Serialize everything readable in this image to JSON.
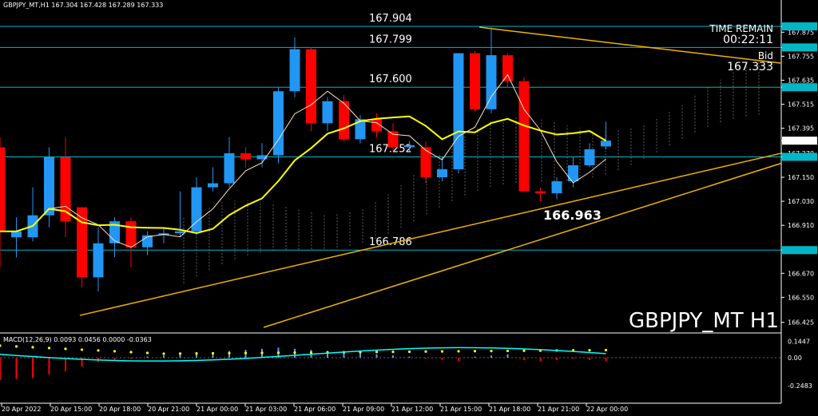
{
  "header": {
    "title": "GBPJPY_MT,H1",
    "ohlc": "167.304 167.428 167.289 167.333"
  },
  "info": {
    "time_remain_label": "TIME REMAIN",
    "time_remain_value": "00:22:11",
    "bid_label": "Bid",
    "bid_value": "167.333"
  },
  "watermark": "GBPJPY_MT H1",
  "macd": {
    "label": "MACD(12,26,9) 0.0093 0.0456 0.0000 -0.0363"
  },
  "colors": {
    "bull": "#2196f3",
    "bear": "#ff0000",
    "level": "#00b7c7",
    "ma": "#ffff00",
    "fastline": "#ffe4c4",
    "trend": "#f0b400",
    "signal": "#00ffff"
  },
  "chart_data": {
    "type": "candlestick",
    "ylim": [
      166.38,
      167.98
    ],
    "y_ticks": [
      "167.904",
      "167.875",
      "167.799",
      "167.755",
      "167.635",
      "167.600",
      "167.515",
      "167.395",
      "167.333",
      "167.270",
      "167.252",
      "167.150",
      "167.030",
      "166.910",
      "166.786",
      "166.670",
      "166.550",
      "166.425"
    ],
    "x_ticks": [
      "20 Apr 2022",
      "20 Apr 15:00",
      "20 Apr 18:00",
      "20 Apr 21:00",
      "21 Apr 00:00",
      "21 Apr 03:00",
      "21 Apr 06:00",
      "21 Apr 09:00",
      "21 Apr 12:00",
      "21 Apr 15:00",
      "21 Apr 18:00",
      "21 Apr 21:00",
      "22 Apr 00:00"
    ],
    "levels": [
      {
        "value": 167.904,
        "label": "167.904"
      },
      {
        "value": 167.799,
        "label": "167.799"
      },
      {
        "value": 167.6,
        "label": "167.600"
      },
      {
        "value": 167.252,
        "label": "167.252"
      },
      {
        "value": 166.786,
        "label": "166.786"
      }
    ],
    "highlight_level": {
      "value": 166.963,
      "label": "166.963"
    },
    "candles": [
      {
        "o": 167.3,
        "h": 167.35,
        "l": 166.7,
        "c": 166.88
      },
      {
        "o": 166.85,
        "h": 166.95,
        "l": 166.75,
        "c": 166.88
      },
      {
        "o": 166.85,
        "h": 167.1,
        "l": 166.83,
        "c": 166.96
      },
      {
        "o": 166.96,
        "h": 167.3,
        "l": 166.9,
        "c": 167.25
      },
      {
        "o": 167.25,
        "h": 167.35,
        "l": 166.85,
        "c": 166.93
      },
      {
        "o": 167.0,
        "h": 167.0,
        "l": 166.6,
        "c": 166.65
      },
      {
        "o": 166.65,
        "h": 166.9,
        "l": 166.58,
        "c": 166.82
      },
      {
        "o": 166.82,
        "h": 166.95,
        "l": 166.75,
        "c": 166.93
      },
      {
        "o": 166.93,
        "h": 166.95,
        "l": 166.7,
        "c": 166.8
      },
      {
        "o": 166.8,
        "h": 166.88,
        "l": 166.76,
        "c": 166.86
      },
      {
        "o": 166.86,
        "h": 166.9,
        "l": 166.82,
        "c": 166.87
      },
      {
        "o": 166.87,
        "h": 167.08,
        "l": 166.85,
        "c": 166.88
      },
      {
        "o": 166.88,
        "h": 167.15,
        "l": 166.86,
        "c": 167.1
      },
      {
        "o": 167.1,
        "h": 167.2,
        "l": 167.08,
        "c": 167.12
      },
      {
        "o": 167.12,
        "h": 167.35,
        "l": 167.1,
        "c": 167.27
      },
      {
        "o": 167.27,
        "h": 167.3,
        "l": 167.2,
        "c": 167.24
      },
      {
        "o": 167.24,
        "h": 167.32,
        "l": 167.2,
        "c": 167.26
      },
      {
        "o": 167.26,
        "h": 167.6,
        "l": 167.22,
        "c": 167.58
      },
      {
        "o": 167.58,
        "h": 167.85,
        "l": 167.55,
        "c": 167.79
      },
      {
        "o": 167.79,
        "h": 167.8,
        "l": 167.38,
        "c": 167.42
      },
      {
        "o": 167.42,
        "h": 167.55,
        "l": 167.38,
        "c": 167.53
      },
      {
        "o": 167.53,
        "h": 167.56,
        "l": 167.33,
        "c": 167.34
      },
      {
        "o": 167.34,
        "h": 167.46,
        "l": 167.32,
        "c": 167.44
      },
      {
        "o": 167.44,
        "h": 167.47,
        "l": 167.35,
        "c": 167.38
      },
      {
        "o": 167.38,
        "h": 167.42,
        "l": 167.28,
        "c": 167.3
      },
      {
        "o": 167.3,
        "h": 167.33,
        "l": 167.28,
        "c": 167.31
      },
      {
        "o": 167.3,
        "h": 167.33,
        "l": 167.12,
        "c": 167.15
      },
      {
        "o": 167.15,
        "h": 167.25,
        "l": 167.13,
        "c": 167.19
      },
      {
        "o": 167.19,
        "h": 167.77,
        "l": 167.17,
        "c": 167.77
      },
      {
        "o": 167.77,
        "h": 167.78,
        "l": 167.48,
        "c": 167.49
      },
      {
        "o": 167.49,
        "h": 167.9,
        "l": 167.47,
        "c": 167.76
      },
      {
        "o": 167.76,
        "h": 167.77,
        "l": 167.6,
        "c": 167.63
      },
      {
        "o": 167.63,
        "h": 167.65,
        "l": 167.08,
        "c": 167.08
      },
      {
        "o": 167.08,
        "h": 167.1,
        "l": 167.03,
        "c": 167.07
      },
      {
        "o": 167.07,
        "h": 167.15,
        "l": 167.04,
        "c": 167.13
      },
      {
        "o": 167.13,
        "h": 167.25,
        "l": 167.1,
        "c": 167.21
      },
      {
        "o": 167.21,
        "h": 167.32,
        "l": 167.2,
        "c": 167.29
      },
      {
        "o": 167.304,
        "h": 167.428,
        "l": 167.289,
        "c": 167.333
      }
    ],
    "macd_ylim": [
      -0.3,
      0.2
    ],
    "macd_ticks": [
      "0.1447",
      "0.00",
      "-0.2483"
    ]
  }
}
